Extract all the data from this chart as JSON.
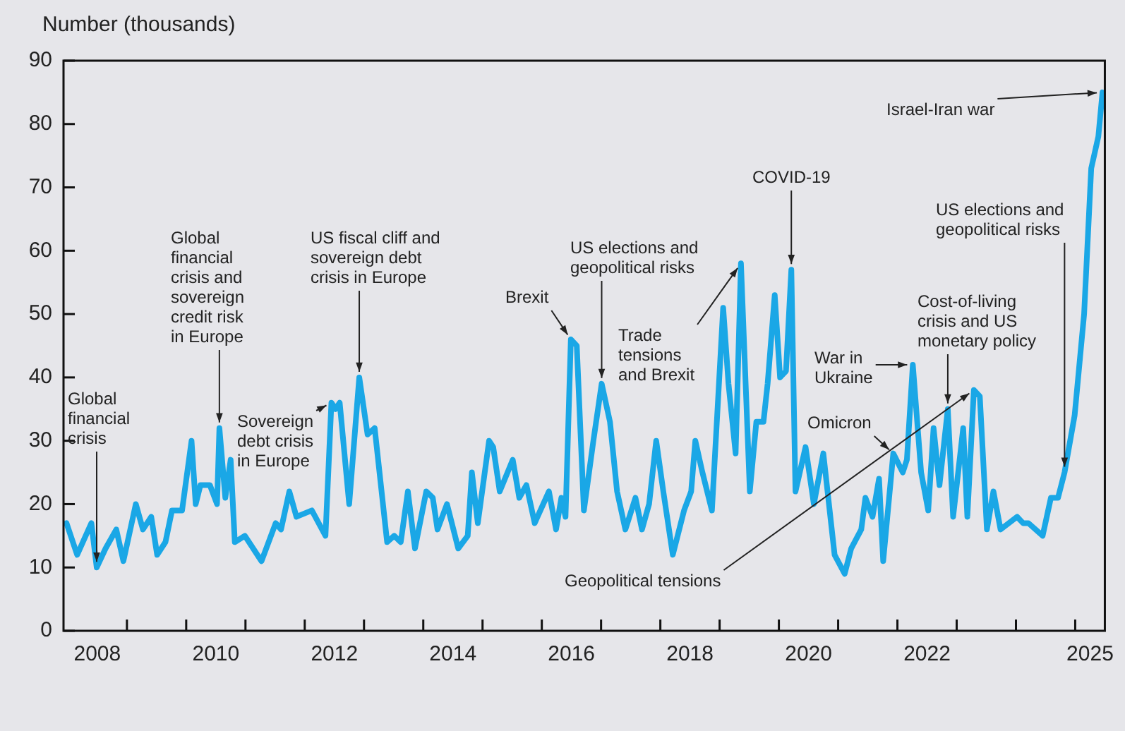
{
  "chart_data": {
    "type": "line",
    "ylabel": "Number (thousands)",
    "x": [
      2007.98,
      2008.16,
      2008.4,
      2008.49,
      2008.64,
      2008.82,
      2008.94,
      2009.15,
      2009.27,
      2009.41,
      2009.51,
      2009.65,
      2009.76,
      2009.93,
      2010.09,
      2010.16,
      2010.24,
      2010.4,
      2010.52,
      2010.56,
      2010.66,
      2010.75,
      2010.82,
      2010.99,
      2011.27,
      2011.39,
      2011.51,
      2011.6,
      2011.74,
      2011.86,
      2012.12,
      2012.35,
      2012.45,
      2012.52,
      2012.59,
      2012.75,
      2012.92,
      2013.06,
      2013.18,
      2013.39,
      2013.51,
      2013.62,
      2013.74,
      2013.86,
      2014.05,
      2014.16,
      2014.24,
      2014.4,
      2014.59,
      2014.75,
      2014.82,
      2014.92,
      2015.11,
      2015.18,
      2015.29,
      2015.51,
      2015.62,
      2015.74,
      2015.88,
      2016.12,
      2016.24,
      2016.33,
      2016.4,
      2016.49,
      2016.59,
      2016.71,
      2016.87,
      2017.01,
      2017.15,
      2017.27,
      2017.41,
      2017.58,
      2017.69,
      2017.81,
      2017.93,
      2018.05,
      2018.21,
      2018.4,
      2018.52,
      2018.59,
      2018.71,
      2018.87,
      2019.06,
      2019.15,
      2019.27,
      2019.36,
      2019.51,
      2019.62,
      2019.74,
      2019.81,
      2019.93,
      2020.02,
      2020.12,
      2020.21,
      2020.28,
      2020.45,
      2020.59,
      2020.75,
      2020.94,
      2021.11,
      2021.22,
      2021.39,
      2021.46,
      2021.58,
      2021.69,
      2021.76,
      2021.93,
      2022.09,
      2022.16,
      2022.26,
      2022.4,
      2022.52,
      2022.61,
      2022.71,
      2022.85,
      2022.94,
      2023.11,
      2023.18,
      2023.29,
      2023.39,
      2023.51,
      2023.62,
      2023.74,
      2023.88,
      2024.02,
      2024.12,
      2024.21,
      2024.45,
      2024.59,
      2024.71,
      2024.82,
      2024.99,
      2025.15,
      2025.27,
      2025.39,
      2025.46
    ],
    "series": [
      {
        "color": "#1aa7e6",
        "values": [
          17,
          12,
          17,
          10,
          13,
          16,
          11,
          20,
          16,
          18,
          12,
          14,
          19,
          19,
          30,
          20,
          23,
          23,
          20,
          32,
          21,
          27,
          14,
          15,
          11,
          14,
          17,
          16,
          22,
          18,
          19,
          15,
          36,
          35,
          36,
          20,
          40,
          31,
          32,
          14,
          15,
          14,
          22,
          13,
          22,
          21,
          16,
          20,
          13,
          15,
          25,
          17,
          30,
          29,
          22,
          27,
          21,
          23,
          17,
          22,
          16,
          21,
          18,
          46,
          45,
          19,
          30,
          39,
          33,
          22,
          16,
          21,
          16,
          20,
          30,
          22,
          12,
          19,
          22,
          30,
          25,
          19,
          51,
          39,
          28,
          58,
          22,
          33,
          33,
          39,
          53,
          40,
          41,
          57,
          22,
          29,
          20,
          28,
          12,
          9,
          13,
          16,
          21,
          18,
          24,
          11,
          28,
          25,
          27,
          42,
          25,
          19,
          32,
          23,
          35,
          18,
          32,
          18,
          38,
          37,
          16,
          22,
          16,
          17,
          18,
          17,
          17,
          15,
          21,
          21,
          25,
          34,
          50,
          73,
          78,
          85
        ]
      }
    ],
    "xlim": [
      2007.93,
      2025.5
    ],
    "xticks": [
      {
        "value": 2008.5,
        "label": "2008"
      },
      {
        "value": 2009,
        "label": null
      },
      {
        "value": 2010,
        "label": null
      },
      {
        "value": 2010.5,
        "label": "2010"
      },
      {
        "value": 2011,
        "label": null
      },
      {
        "value": 2012,
        "label": null
      },
      {
        "value": 2012.5,
        "label": "2012"
      },
      {
        "value": 2013,
        "label": null
      },
      {
        "value": 2014,
        "label": null
      },
      {
        "value": 2014.5,
        "label": "2014"
      },
      {
        "value": 2015,
        "label": null
      },
      {
        "value": 2016,
        "label": null
      },
      {
        "value": 2016.5,
        "label": "2016"
      },
      {
        "value": 2017,
        "label": null
      },
      {
        "value": 2018,
        "label": null
      },
      {
        "value": 2018.5,
        "label": "2018"
      },
      {
        "value": 2019,
        "label": null
      },
      {
        "value": 2020,
        "label": null
      },
      {
        "value": 2020.5,
        "label": "2020"
      },
      {
        "value": 2021,
        "label": null
      },
      {
        "value": 2022,
        "label": null
      },
      {
        "value": 2022.5,
        "label": "2022"
      },
      {
        "value": 2023,
        "label": null
      },
      {
        "value": 2024,
        "label": null
      },
      {
        "value": 2025,
        "label": null
      },
      {
        "value": 2025.25,
        "label": "2025"
      }
    ],
    "ylim": [
      0,
      90
    ],
    "yticks": [
      0,
      10,
      20,
      30,
      40,
      50,
      60,
      70,
      80,
      90
    ],
    "grid": false,
    "legend": false,
    "marker": "none",
    "line_style": "solid",
    "annotations": [
      {
        "text": "Global financial crisis",
        "x": 2008.49,
        "y": 10
      },
      {
        "text": "Global financial crisis and sovereign credit risk in Europe",
        "x": 2010.56,
        "y": 32
      },
      {
        "text": "Sovereign debt crisis in Europe",
        "x": 2012.45,
        "y": 36
      },
      {
        "text": "US fiscal cliff and sovereign debt crisis in Europe",
        "x": 2012.92,
        "y": 40
      },
      {
        "text": "Brexit",
        "x": 2016.49,
        "y": 46
      },
      {
        "text": "US elections and geopolitical risks",
        "x": 2017.01,
        "y": 39
      },
      {
        "text": "Trade tensions and Brexit",
        "x": 2019.36,
        "y": 58
      },
      {
        "text": "COVID-19",
        "x": 2020.21,
        "y": 57
      },
      {
        "text": "War in Ukraine",
        "x": 2022.26,
        "y": 42
      },
      {
        "text": "Omicron",
        "x": 2021.93,
        "y": 28
      },
      {
        "text": "Cost-of-living crisis and US monetary policy",
        "x": 2022.85,
        "y": 35
      },
      {
        "text": "US elections and geopolitical risks",
        "x": 2024.82,
        "y": 25
      },
      {
        "text": "Israel-Iran war",
        "x": 2025.46,
        "y": 85
      },
      {
        "text": "Geopolitical tensions",
        "x": 2023.29,
        "y": 38
      }
    ]
  }
}
